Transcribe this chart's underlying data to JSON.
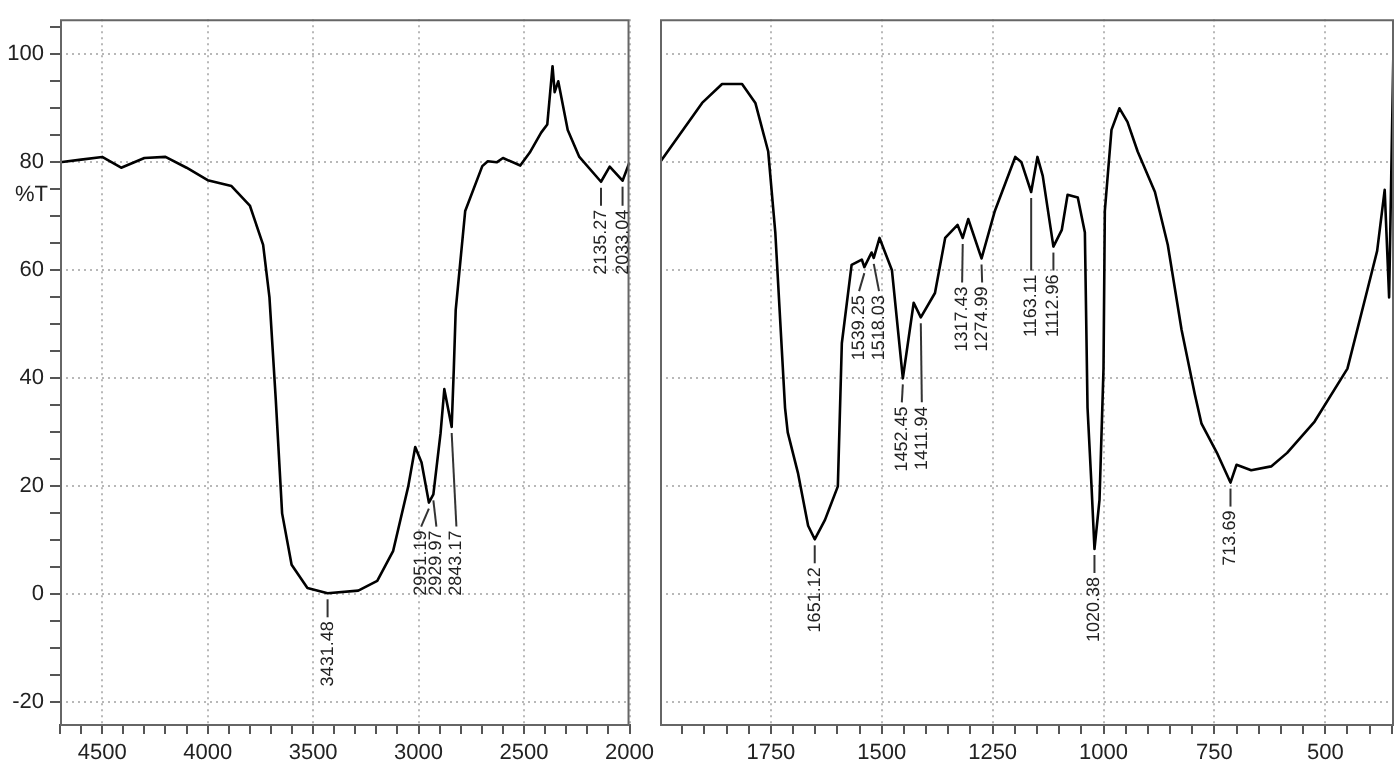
{
  "chart_data": [
    {
      "type": "line",
      "ylabel": "%T",
      "xlim": [
        4700,
        2000
      ],
      "ylim": [
        -24,
        106.5
      ],
      "grid": true,
      "marker": "none",
      "line_style": "solid",
      "xticks": [
        {
          "value": 4700,
          "label": null
        },
        {
          "value": 4600,
          "label": null
        },
        4500,
        {
          "value": 4400,
          "label": null
        },
        {
          "value": 4300,
          "label": null
        },
        {
          "value": 4200,
          "label": null
        },
        {
          "value": 4100,
          "label": null
        },
        4000,
        {
          "value": 3900,
          "label": null
        },
        {
          "value": 3800,
          "label": null
        },
        {
          "value": 3700,
          "label": null
        },
        {
          "value": 3600,
          "label": null
        },
        3500,
        {
          "value": 3400,
          "label": null
        },
        {
          "value": 3300,
          "label": null
        },
        {
          "value": 3200,
          "label": null
        },
        {
          "value": 3100,
          "label": null
        },
        3000,
        {
          "value": 2900,
          "label": null
        },
        {
          "value": 2800,
          "label": null
        },
        {
          "value": 2700,
          "label": null
        },
        {
          "value": 2600,
          "label": null
        },
        2500,
        {
          "value": 2400,
          "label": null
        },
        {
          "value": 2300,
          "label": null
        },
        {
          "value": 2200,
          "label": null
        },
        {
          "value": 2100,
          "label": null
        },
        2000
      ],
      "yticks": [
        -20,
        {
          "value": -15,
          "label": null
        },
        {
          "value": -10,
          "label": null
        },
        {
          "value": -5,
          "label": null
        },
        0,
        {
          "value": 5,
          "label": null
        },
        {
          "value": 10,
          "label": null
        },
        {
          "value": 15,
          "label": null
        },
        20,
        {
          "value": 25,
          "label": null
        },
        {
          "value": 30,
          "label": null
        },
        {
          "value": 35,
          "label": null
        },
        40,
        {
          "value": 45,
          "label": null
        },
        {
          "value": 50,
          "label": null
        },
        {
          "value": 55,
          "label": null
        },
        60,
        {
          "value": 65,
          "label": null
        },
        {
          "value": 70,
          "label": null
        },
        {
          "value": 75,
          "label": null
        },
        80,
        {
          "value": 85,
          "label": null
        },
        {
          "value": 90,
          "label": null
        },
        {
          "value": 95,
          "label": null
        },
        100,
        {
          "value": 105,
          "label": null
        }
      ],
      "series": [
        {
          "color": "#000000",
          "x": [
            4700,
            4600,
            4500,
            4410,
            4300,
            4200,
            4100,
            4000,
            3887,
            3800,
            3737,
            3707,
            3677,
            3647,
            3602,
            3527,
            3431.48,
            3286,
            3196,
            3121,
            3049,
            3016,
            2986,
            2951.19,
            2929.97,
            2896,
            2878,
            2843.17,
            2833,
            2824,
            2779,
            2698,
            2672,
            2630,
            2600,
            2518,
            2473,
            2419,
            2390,
            2365,
            2355,
            2338,
            2293,
            2238,
            2135.27,
            2094,
            2033.04,
            2000
          ],
          "values": [
            80,
            80.5,
            81,
            79,
            80.8,
            81,
            79,
            76.7,
            75.6,
            72,
            64.7,
            55,
            36,
            15,
            5.5,
            1.2,
            0.2,
            0.7,
            2.5,
            8,
            20,
            27.3,
            24.4,
            17,
            18.5,
            29.8,
            38,
            31,
            41.8,
            52.7,
            71,
            79.3,
            80.2,
            80,
            80.8,
            79.4,
            81.8,
            85.5,
            87,
            97.8,
            93,
            95,
            86,
            81,
            76.4,
            79.2,
            76.6,
            80
          ]
        }
      ],
      "annotations": [
        {
          "text": "3431.48",
          "x": 3431.48,
          "y": 0.2
        },
        {
          "text": "2951.19",
          "x": 2951.19,
          "y": 17
        },
        {
          "text": "2929.97",
          "x": 2929.97,
          "y": 18.5
        },
        {
          "text": "2843.17",
          "x": 2843.17,
          "y": 31
        },
        {
          "text": "2135.27",
          "x": 2135.27,
          "y": 76.4
        },
        {
          "text": "2033.04",
          "x": 2033.04,
          "y": 76.6
        }
      ]
    },
    {
      "type": "line",
      "xlim": [
        2000,
        345
      ],
      "ylim": [
        -24,
        106.5
      ],
      "grid": true,
      "marker": "none",
      "line_style": "solid",
      "tick_labels": "x",
      "yticks": [
        -20,
        0,
        20,
        40,
        60,
        80,
        100
      ],
      "xticks": [
        {
          "value": 1950,
          "label": null
        },
        {
          "value": 1900,
          "label": null
        },
        {
          "value": 1850,
          "label": null
        },
        {
          "value": 1800,
          "label": null
        },
        1750,
        {
          "value": 1700,
          "label": null
        },
        {
          "value": 1650,
          "label": null
        },
        {
          "value": 1600,
          "label": null
        },
        {
          "value": 1550,
          "label": null
        },
        1500,
        {
          "value": 1450,
          "label": null
        },
        {
          "value": 1400,
          "label": null
        },
        {
          "value": 1350,
          "label": null
        },
        {
          "value": 1300,
          "label": null
        },
        1250,
        {
          "value": 1200,
          "label": null
        },
        {
          "value": 1150,
          "label": null
        },
        {
          "value": 1100,
          "label": null
        },
        {
          "value": 1050,
          "label": null
        },
        1000,
        {
          "value": 950,
          "label": null
        },
        {
          "value": 900,
          "label": null
        },
        {
          "value": 850,
          "label": null
        },
        {
          "value": 800,
          "label": null
        },
        750,
        {
          "value": 700,
          "label": null
        },
        {
          "value": 650,
          "label": null
        },
        {
          "value": 600,
          "label": null
        },
        {
          "value": 550,
          "label": null
        },
        500,
        {
          "value": 450,
          "label": null
        },
        {
          "value": 400,
          "label": null
        },
        {
          "value": 350,
          "label": null
        }
      ],
      "series": [
        {
          "color": "#000000",
          "x": [
            2000,
            1905,
            1860,
            1815,
            1785,
            1756,
            1740,
            1718,
            1712,
            1689,
            1666,
            1651.12,
            1628,
            1599,
            1590,
            1568,
            1545,
            1539.25,
            1523,
            1518.03,
            1505,
            1477,
            1452.45,
            1428,
            1411.94,
            1380,
            1357,
            1329,
            1317.43,
            1305,
            1274.99,
            1245,
            1199,
            1185,
            1163.11,
            1149,
            1137,
            1112.96,
            1094,
            1081,
            1058,
            1042,
            1036,
            1027,
            1020.38,
            1009,
            1000,
            997,
            982,
            964,
            946,
            923,
            884,
            855,
            824,
            794,
            779,
            743,
            713.69,
            700,
            667,
            622,
            586,
            524,
            450,
            405,
            383,
            366,
            356,
            346
          ],
          "values": [
            80,
            91,
            94.5,
            94.5,
            91,
            82,
            67,
            34.5,
            30,
            22.5,
            12.7,
            10.2,
            13.8,
            20,
            46.5,
            61,
            62,
            60.6,
            63.3,
            62.3,
            66,
            60,
            40,
            54,
            51.3,
            55.8,
            66,
            68.4,
            66,
            69.5,
            62.2,
            71,
            81,
            80,
            74.5,
            81,
            77.5,
            64.4,
            67.5,
            74,
            73.5,
            67,
            34.5,
            20,
            8.4,
            17.5,
            41.8,
            71,
            86,
            90,
            87.5,
            82,
            74.5,
            64.7,
            49,
            37,
            31.6,
            26,
            20.7,
            24,
            23,
            23.7,
            26.2,
            32,
            41.8,
            56.4,
            63.6,
            74.9,
            55,
            102
          ]
        }
      ],
      "annotations": [
        {
          "text": "1651.12",
          "x": 1651.12,
          "y": 10.2
        },
        {
          "text": "1539.25",
          "x": 1539.25,
          "y": 60.6
        },
        {
          "text": "1518.03",
          "x": 1518.03,
          "y": 62.3
        },
        {
          "text": "1452.45",
          "x": 1452.45,
          "y": 40
        },
        {
          "text": "1411.94",
          "x": 1411.94,
          "y": 51.3
        },
        {
          "text": "1317.43",
          "x": 1317.43,
          "y": 66
        },
        {
          "text": "1274.99",
          "x": 1274.99,
          "y": 62.2
        },
        {
          "text": "1163.11",
          "x": 1163.11,
          "y": 74.5
        },
        {
          "text": "1112.96",
          "x": 1112.96,
          "y": 64.4
        },
        {
          "text": "1020.38",
          "x": 1020.38,
          "y": 8.4
        },
        {
          "text": "713.69",
          "x": 713.69,
          "y": 20.7
        }
      ]
    }
  ]
}
